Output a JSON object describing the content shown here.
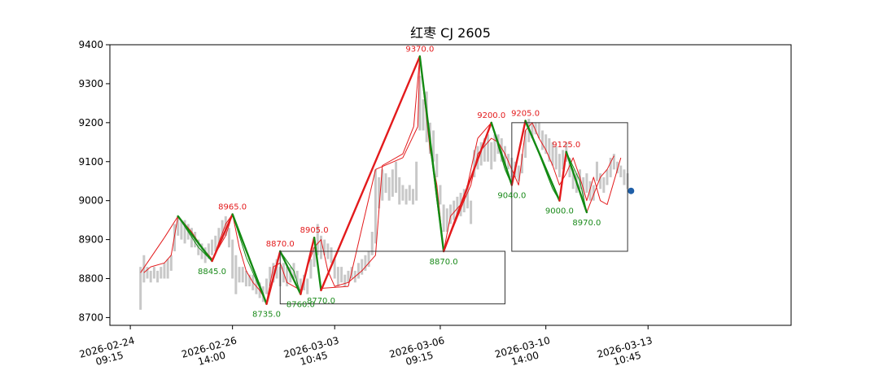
{
  "chart_data": {
    "type": "line",
    "title": "红枣 CJ 2605",
    "xlabel": "",
    "ylabel": "",
    "ylim": [
      8680,
      9400
    ],
    "yticks": [
      8700,
      8800,
      8900,
      9000,
      9100,
      9200,
      9300,
      9400
    ],
    "xlim": [
      0,
      100
    ],
    "xticks": [
      {
        "x": 3,
        "label": [
          "2026-02-24",
          "09:15"
        ]
      },
      {
        "x": 18,
        "label": [
          "2026-02-26",
          "14:00"
        ]
      },
      {
        "x": 33,
        "label": [
          "2026-03-03",
          "10:45"
        ]
      },
      {
        "x": 48.5,
        "label": [
          "2026-03-06",
          "09:15"
        ]
      },
      {
        "x": 64,
        "label": [
          "2026-03-10",
          "14:00"
        ]
      },
      {
        "x": 79,
        "label": [
          "2026-03-13",
          "10:45"
        ]
      }
    ],
    "colors": {
      "price": "#c8c8c8",
      "up": "#e31a1c",
      "down": "#138a13",
      "box": "#333333",
      "last_marker": "#1f5fa8"
    },
    "price_bars": [
      [
        4.5,
        8720,
        8830
      ],
      [
        5,
        8790,
        8860
      ],
      [
        5.5,
        8800,
        8830
      ],
      [
        6,
        8790,
        8820
      ],
      [
        6.5,
        8800,
        8830
      ],
      [
        7,
        8790,
        8820
      ],
      [
        7.5,
        8800,
        8830
      ],
      [
        8,
        8800,
        8840
      ],
      [
        8.5,
        8800,
        8850
      ],
      [
        9,
        8820,
        8860
      ],
      [
        9.5,
        8870,
        8940
      ],
      [
        10,
        8910,
        8960
      ],
      [
        10.5,
        8900,
        8950
      ],
      [
        11,
        8890,
        8950
      ],
      [
        11.5,
        8900,
        8940
      ],
      [
        12,
        8880,
        8930
      ],
      [
        12.5,
        8880,
        8920
      ],
      [
        13,
        8860,
        8900
      ],
      [
        13.5,
        8850,
        8890
      ],
      [
        14,
        8840,
        8880
      ],
      [
        14.5,
        8850,
        8890
      ],
      [
        15,
        8860,
        8900
      ],
      [
        15.5,
        8870,
        8910
      ],
      [
        16,
        8880,
        8930
      ],
      [
        16.5,
        8900,
        8950
      ],
      [
        17,
        8910,
        8960
      ],
      [
        17.5,
        8880,
        8930
      ],
      [
        18,
        8800,
        8900
      ],
      [
        18.5,
        8760,
        8860
      ],
      [
        19,
        8790,
        8830
      ],
      [
        19.5,
        8790,
        8830
      ],
      [
        20,
        8780,
        8820
      ],
      [
        20.5,
        8780,
        8810
      ],
      [
        21,
        8770,
        8810
      ],
      [
        21.5,
        8760,
        8800
      ],
      [
        22,
        8750,
        8790
      ],
      [
        22.5,
        8740,
        8780
      ],
      [
        23,
        8760,
        8800
      ],
      [
        23.5,
        8780,
        8830
      ],
      [
        24,
        8790,
        8840
      ],
      [
        24.5,
        8800,
        8850
      ],
      [
        25,
        8780,
        8830
      ],
      [
        25.5,
        8790,
        8840
      ],
      [
        26,
        8780,
        8830
      ],
      [
        26.5,
        8790,
        8830
      ],
      [
        27,
        8800,
        8840
      ],
      [
        27.5,
        8780,
        8820
      ],
      [
        28,
        8760,
        8800
      ],
      [
        28.5,
        8770,
        8810
      ],
      [
        29,
        8760,
        8800
      ],
      [
        29.5,
        8800,
        8850
      ],
      [
        30,
        8830,
        8880
      ],
      [
        30.5,
        8860,
        8940
      ],
      [
        31,
        8850,
        8910
      ],
      [
        31.5,
        8860,
        8900
      ],
      [
        32,
        8850,
        8890
      ],
      [
        32.5,
        8840,
        8880
      ],
      [
        33,
        8800,
        8850
      ],
      [
        33.5,
        8780,
        8830
      ],
      [
        34,
        8790,
        8830
      ],
      [
        34.5,
        8780,
        8810
      ],
      [
        35,
        8790,
        8820
      ],
      [
        35.5,
        8800,
        8830
      ],
      [
        36,
        8790,
        8820
      ],
      [
        36.5,
        8800,
        8840
      ],
      [
        37,
        8810,
        8850
      ],
      [
        37.5,
        8820,
        8860
      ],
      [
        38,
        8830,
        8870
      ],
      [
        38.5,
        8860,
        8920
      ],
      [
        39,
        8890,
        9080
      ],
      [
        39.5,
        8980,
        9060
      ],
      [
        40,
        9000,
        9080
      ],
      [
        40.5,
        9020,
        9070
      ],
      [
        41,
        9000,
        9060
      ],
      [
        41.5,
        9010,
        9080
      ],
      [
        42,
        9020,
        9100
      ],
      [
        42.5,
        8990,
        9060
      ],
      [
        43,
        9000,
        9040
      ],
      [
        43.5,
        8990,
        9030
      ],
      [
        44,
        9000,
        9040
      ],
      [
        44.5,
        8990,
        9030
      ],
      [
        45,
        9000,
        9100
      ],
      [
        45.5,
        9180,
        9320
      ],
      [
        46,
        9180,
        9260
      ],
      [
        46.5,
        9150,
        9280
      ],
      [
        47,
        9120,
        9200
      ],
      [
        47.5,
        9100,
        9180
      ],
      [
        48,
        9060,
        9120
      ],
      [
        48.5,
        8990,
        9040
      ],
      [
        49,
        8920,
        8990
      ],
      [
        49.5,
        8920,
        8980
      ],
      [
        50,
        8940,
        8990
      ],
      [
        50.5,
        8950,
        9000
      ],
      [
        51,
        8960,
        9010
      ],
      [
        51.5,
        8960,
        9020
      ],
      [
        52,
        8970,
        9030
      ],
      [
        52.5,
        8980,
        9040
      ],
      [
        53,
        8940,
        9000
      ],
      [
        53.5,
        9060,
        9130
      ],
      [
        54,
        9080,
        9140
      ],
      [
        54.5,
        9090,
        9150
      ],
      [
        55,
        9100,
        9160
      ],
      [
        55.5,
        9100,
        9170
      ],
      [
        56,
        9080,
        9150
      ],
      [
        56.5,
        9100,
        9170
      ],
      [
        57,
        9120,
        9170
      ],
      [
        57.5,
        9100,
        9160
      ],
      [
        58,
        9090,
        9140
      ],
      [
        58.5,
        9080,
        9120
      ],
      [
        59,
        9060,
        9110
      ],
      [
        59.5,
        9060,
        9100
      ],
      [
        60,
        9050,
        9090
      ],
      [
        60.5,
        9070,
        9120
      ],
      [
        61,
        9110,
        9180
      ],
      [
        61.5,
        9150,
        9210
      ],
      [
        62,
        9160,
        9200
      ],
      [
        62.5,
        9170,
        9200
      ],
      [
        63,
        9160,
        9200
      ],
      [
        63.5,
        9130,
        9180
      ],
      [
        64,
        9120,
        9170
      ],
      [
        64.5,
        9100,
        9160
      ],
      [
        65,
        9090,
        9150
      ],
      [
        65.5,
        9080,
        9140
      ],
      [
        66,
        9060,
        9120
      ],
      [
        66.5,
        9080,
        9130
      ],
      [
        67,
        9100,
        9150
      ],
      [
        67.5,
        9060,
        9110
      ],
      [
        68,
        9030,
        9080
      ],
      [
        68.5,
        9020,
        9070
      ],
      [
        69,
        9030,
        9080
      ],
      [
        69.5,
        9000,
        9060
      ],
      [
        70,
        9020,
        9070
      ],
      [
        70.5,
        9000,
        9050
      ],
      [
        71,
        9000,
        9040
      ],
      [
        71.5,
        9050,
        9100
      ],
      [
        72,
        9030,
        9070
      ],
      [
        72.5,
        9020,
        9060
      ],
      [
        73,
        9040,
        9080
      ],
      [
        73.5,
        9060,
        9110
      ],
      [
        74,
        9080,
        9120
      ],
      [
        74.5,
        9070,
        9100
      ],
      [
        75,
        9060,
        9090
      ],
      [
        75.5,
        9040,
        9080
      ],
      [
        76,
        9030,
        9070
      ]
    ],
    "price_line": [
      [
        5,
        8815
      ],
      [
        6,
        8830
      ],
      [
        8,
        8840
      ],
      [
        9,
        8860
      ],
      [
        9.5,
        8910
      ],
      [
        10,
        8960
      ],
      [
        12,
        8920
      ],
      [
        13.5,
        8880
      ],
      [
        15,
        8850
      ],
      [
        16,
        8880
      ],
      [
        17,
        8910
      ],
      [
        18,
        8965
      ],
      [
        19,
        8880
      ],
      [
        20,
        8820
      ],
      [
        21,
        8790
      ],
      [
        22,
        8770
      ],
      [
        23,
        8740
      ],
      [
        24,
        8830
      ],
      [
        25,
        8840
      ],
      [
        26,
        8790
      ],
      [
        27,
        8780
      ],
      [
        28,
        8770
      ],
      [
        29,
        8830
      ],
      [
        30,
        8880
      ],
      [
        31,
        8900
      ],
      [
        32,
        8820
      ],
      [
        33,
        8780
      ],
      [
        35,
        8790
      ],
      [
        37,
        8820
      ],
      [
        38,
        8840
      ],
      [
        39,
        8860
      ],
      [
        40,
        9090
      ],
      [
        43,
        9120
      ],
      [
        44.6,
        9190
      ],
      [
        45.5,
        9370
      ],
      [
        47,
        9130
      ],
      [
        48,
        9040
      ],
      [
        49,
        8870
      ],
      [
        50,
        8960
      ],
      [
        52,
        9000
      ],
      [
        53,
        9040
      ],
      [
        54,
        9120
      ],
      [
        55,
        9140
      ],
      [
        56,
        9160
      ],
      [
        57,
        9150
      ],
      [
        58,
        9120
      ],
      [
        59,
        9080
      ],
      [
        60,
        9040
      ],
      [
        61,
        9180
      ],
      [
        62,
        9200
      ],
      [
        63,
        9160
      ],
      [
        64,
        9130
      ],
      [
        65,
        9090
      ],
      [
        66,
        9040
      ],
      [
        67,
        9070
      ],
      [
        68,
        9110
      ],
      [
        69,
        9060
      ],
      [
        70,
        9000
      ],
      [
        71,
        9060
      ],
      [
        72,
        9000
      ],
      [
        73,
        8990
      ],
      [
        74,
        9050
      ],
      [
        75,
        9110
      ]
    ],
    "zigzag_thin": [
      [
        4.5,
        8815
      ],
      [
        8,
        8905
      ],
      [
        10,
        8960
      ],
      [
        13,
        8880
      ],
      [
        15,
        8845
      ],
      [
        17,
        8940
      ],
      [
        18,
        8965
      ],
      [
        20,
        8855
      ],
      [
        22,
        8775
      ],
      [
        23,
        8735
      ],
      [
        25,
        8870
      ],
      [
        27,
        8820
      ],
      [
        28,
        8760
      ],
      [
        30,
        8905
      ],
      [
        31,
        8775
      ],
      [
        35,
        8780
      ],
      [
        39,
        9080
      ],
      [
        43,
        9110
      ],
      [
        45.2,
        9190
      ],
      [
        45.5,
        9370
      ],
      [
        47,
        9140
      ],
      [
        48,
        9000
      ],
      [
        49,
        8870
      ],
      [
        52,
        9000
      ],
      [
        54,
        9160
      ],
      [
        56,
        9200
      ],
      [
        58,
        9080
      ],
      [
        59,
        9040
      ],
      [
        61,
        9200
      ],
      [
        63,
        9120
      ],
      [
        65,
        9030
      ],
      [
        66,
        9000
      ],
      [
        67,
        9125
      ],
      [
        69,
        9050
      ],
      [
        70,
        8970
      ],
      [
        72,
        9060
      ],
      [
        73,
        9080
      ],
      [
        74,
        9115
      ]
    ],
    "zigzag_thick": [
      [
        10,
        8960
      ],
      [
        15,
        8845
      ],
      [
        18,
        8965
      ],
      [
        23,
        8735
      ],
      [
        25,
        8870
      ],
      [
        28,
        8760
      ],
      [
        30,
        8905
      ],
      [
        31,
        8770
      ],
      [
        45.5,
        9370
      ],
      [
        49,
        8870
      ],
      [
        56,
        9200
      ],
      [
        59,
        9040
      ],
      [
        61,
        9205
      ],
      [
        66,
        9000
      ],
      [
        67,
        9125
      ],
      [
        70,
        8970
      ]
    ],
    "pivots": [
      {
        "x": 15,
        "y": 8845,
        "label": "8845.0",
        "kind": "trough"
      },
      {
        "x": 18,
        "y": 8965,
        "label": "8965.0",
        "kind": "peak"
      },
      {
        "x": 23,
        "y": 8735,
        "label": "8735.0",
        "kind": "trough"
      },
      {
        "x": 25,
        "y": 8870,
        "label": "8870.0",
        "kind": "peak"
      },
      {
        "x": 28,
        "y": 8760,
        "label": "8760.0",
        "kind": "trough"
      },
      {
        "x": 30,
        "y": 8905,
        "label": "8905.0",
        "kind": "peak"
      },
      {
        "x": 31,
        "y": 8770,
        "label": "8770.0",
        "kind": "trough"
      },
      {
        "x": 45.5,
        "y": 9370,
        "label": "9370.0",
        "kind": "peak"
      },
      {
        "x": 49,
        "y": 8870,
        "label": "8870.0",
        "kind": "trough"
      },
      {
        "x": 56,
        "y": 9200,
        "label": "9200.0",
        "kind": "peak"
      },
      {
        "x": 59,
        "y": 9040,
        "label": "9040.0",
        "kind": "trough"
      },
      {
        "x": 61,
        "y": 9205,
        "label": "9205.0",
        "kind": "peak"
      },
      {
        "x": 66,
        "y": 9000,
        "label": "9000.0",
        "kind": "trough"
      },
      {
        "x": 67,
        "y": 9125,
        "label": "9125.0",
        "kind": "peak"
      },
      {
        "x": 70,
        "y": 8970,
        "label": "8970.0",
        "kind": "trough"
      }
    ],
    "boxes": [
      {
        "x0": 25,
        "x1": 58,
        "y0": 8735,
        "y1": 8870
      },
      {
        "x0": 59,
        "x1": 76,
        "y0": 8870,
        "y1": 9200
      }
    ],
    "last_point": {
      "x": 76.5,
      "y": 9025
    },
    "grid": false,
    "legend": "none"
  }
}
